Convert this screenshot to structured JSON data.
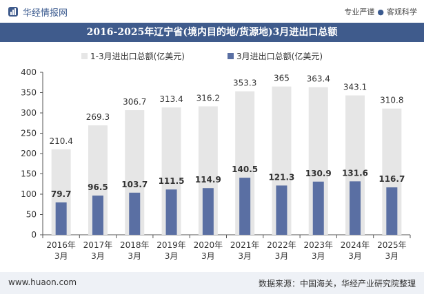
{
  "header": {
    "brand": "华经情报网",
    "tagline_left": "专业严谨",
    "tagline_right": "客观科学"
  },
  "title": "2016-2025年辽宁省(境内目的地/货源地)3月进出口总额",
  "footer": {
    "url": "www.huaon.com",
    "source": "数据来源：中国海关，华经产业研究院整理"
  },
  "colors": {
    "title_bg": "#3f5b8c",
    "series1": "#e6e6e6",
    "series2": "#5a6fa3"
  },
  "chart_data": {
    "type": "bar",
    "categories": [
      "2016年\n3月",
      "2017年\n3月",
      "2018年\n3月",
      "2019年\n3月",
      "2020年\n3月",
      "2021年\n3月",
      "2022年\n3月",
      "2023年\n3月",
      "2024年\n3月",
      "2025年\n3月"
    ],
    "series": [
      {
        "name": "1-3月进出口总额(亿美元)",
        "values": [
          210.4,
          269.3,
          306.7,
          313.4,
          316.2,
          353.3,
          365,
          363.4,
          343.1,
          310.8
        ]
      },
      {
        "name": "3月进出口总额(亿美元)",
        "values": [
          79.7,
          96.5,
          103.7,
          111.5,
          114.9,
          140.5,
          121.3,
          130.9,
          131.6,
          116.7
        ]
      }
    ],
    "value_labels": [
      [
        "210.4",
        "269.3",
        "306.7",
        "313.4",
        "316.2",
        "353.3",
        "365",
        "363.4",
        "343.1",
        "310.8"
      ],
      [
        "79.7",
        "96.5",
        "103.7",
        "111.5",
        "114.9",
        "140.5",
        "121.3",
        "130.9",
        "131.6",
        "116.7"
      ]
    ],
    "ylim": [
      0,
      400
    ],
    "yticks": [
      0,
      50,
      100,
      150,
      200,
      250,
      300,
      350,
      400
    ],
    "legend_position": "top-center",
    "grid": false
  }
}
